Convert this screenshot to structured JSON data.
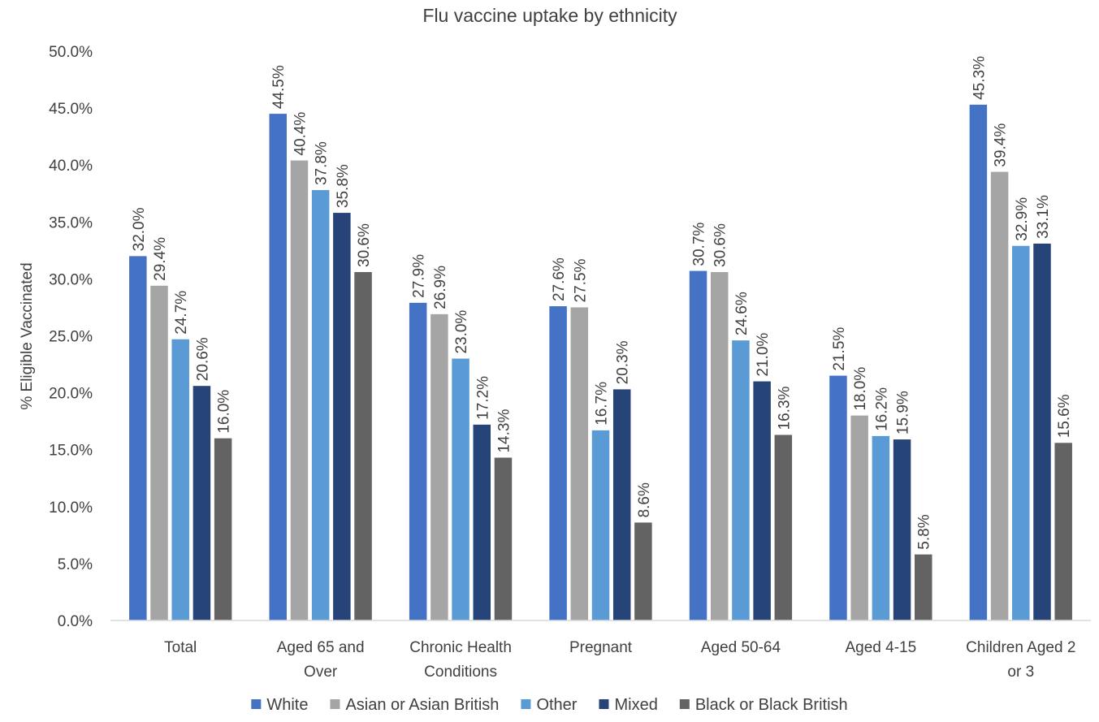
{
  "chart_data": {
    "type": "bar",
    "title": "Flu vaccine uptake by ethnicity",
    "xlabel": "",
    "ylabel": "% Eligible Vaccinated",
    "ylim": [
      0,
      50
    ],
    "y_ticks": [
      "0.0%",
      "5.0%",
      "10.0%",
      "15.0%",
      "20.0%",
      "25.0%",
      "30.0%",
      "35.0%",
      "40.0%",
      "45.0%",
      "50.0%"
    ],
    "categories": [
      [
        "Total"
      ],
      [
        "Aged 65 and",
        "Over"
      ],
      [
        "Chronic Health",
        "Conditions"
      ],
      [
        "Pregnant"
      ],
      [
        "Aged 50-64"
      ],
      [
        "Aged 4-15"
      ],
      [
        "Children Aged 2",
        "or 3"
      ]
    ],
    "series": [
      {
        "name": "White",
        "color": "#4472C4",
        "values": [
          32.0,
          44.5,
          27.9,
          27.6,
          30.7,
          21.5,
          45.3
        ],
        "labels": [
          "32.0%",
          "44.5%",
          "27.9%",
          "27.6%",
          "30.7%",
          "21.5%",
          "45.3%"
        ]
      },
      {
        "name": "Asian or Asian British",
        "color": "#A5A5A5",
        "values": [
          29.4,
          40.4,
          26.9,
          27.5,
          30.6,
          18.0,
          39.4
        ],
        "labels": [
          "29.4%",
          "40.4%",
          "26.9%",
          "27.5%",
          "30.6%",
          "18.0%",
          "39.4%"
        ]
      },
      {
        "name": "Other",
        "color": "#5B9BD5",
        "values": [
          24.7,
          37.8,
          23.0,
          16.7,
          24.6,
          16.2,
          32.9
        ],
        "labels": [
          "24.7%",
          "37.8%",
          "23.0%",
          "16.7%",
          "24.6%",
          "16.2%",
          "32.9%"
        ]
      },
      {
        "name": "Mixed",
        "color": "#264478",
        "values": [
          20.6,
          35.8,
          17.2,
          20.3,
          21.0,
          15.9,
          33.1
        ],
        "labels": [
          "20.6%",
          "35.8%",
          "17.2%",
          "20.3%",
          "21.0%",
          "15.9%",
          "33.1%"
        ]
      },
      {
        "name": "Black or Black British",
        "color": "#636363",
        "values": [
          16.0,
          30.6,
          14.3,
          8.6,
          16.3,
          5.8,
          15.6
        ],
        "labels": [
          "16.0%",
          "30.6%",
          "14.3%",
          "8.6%",
          "16.3%",
          "5.8%",
          "15.6%"
        ]
      }
    ],
    "grid": false,
    "legend": "bottom"
  }
}
